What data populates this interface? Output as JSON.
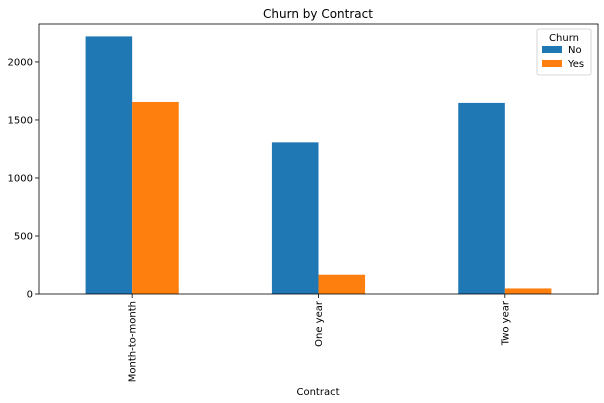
{
  "chart_data": {
    "type": "bar",
    "title": "Churn by Contract",
    "xlabel": "Contract",
    "ylabel": "",
    "categories": [
      "Month-to-month",
      "One year",
      "Two year"
    ],
    "series": [
      {
        "name": "No",
        "values": [
          2220,
          1307,
          1647
        ]
      },
      {
        "name": "Yes",
        "values": [
          1655,
          166,
          48
        ]
      }
    ],
    "ylim": [
      0,
      2327
    ],
    "yticks": [
      0,
      500,
      1000,
      1500,
      2000
    ],
    "legend": {
      "title": "Churn",
      "placement": "top-right"
    },
    "grid": false
  },
  "colors": {
    "No": "#1f77b4",
    "Yes": "#ff7f0e"
  }
}
